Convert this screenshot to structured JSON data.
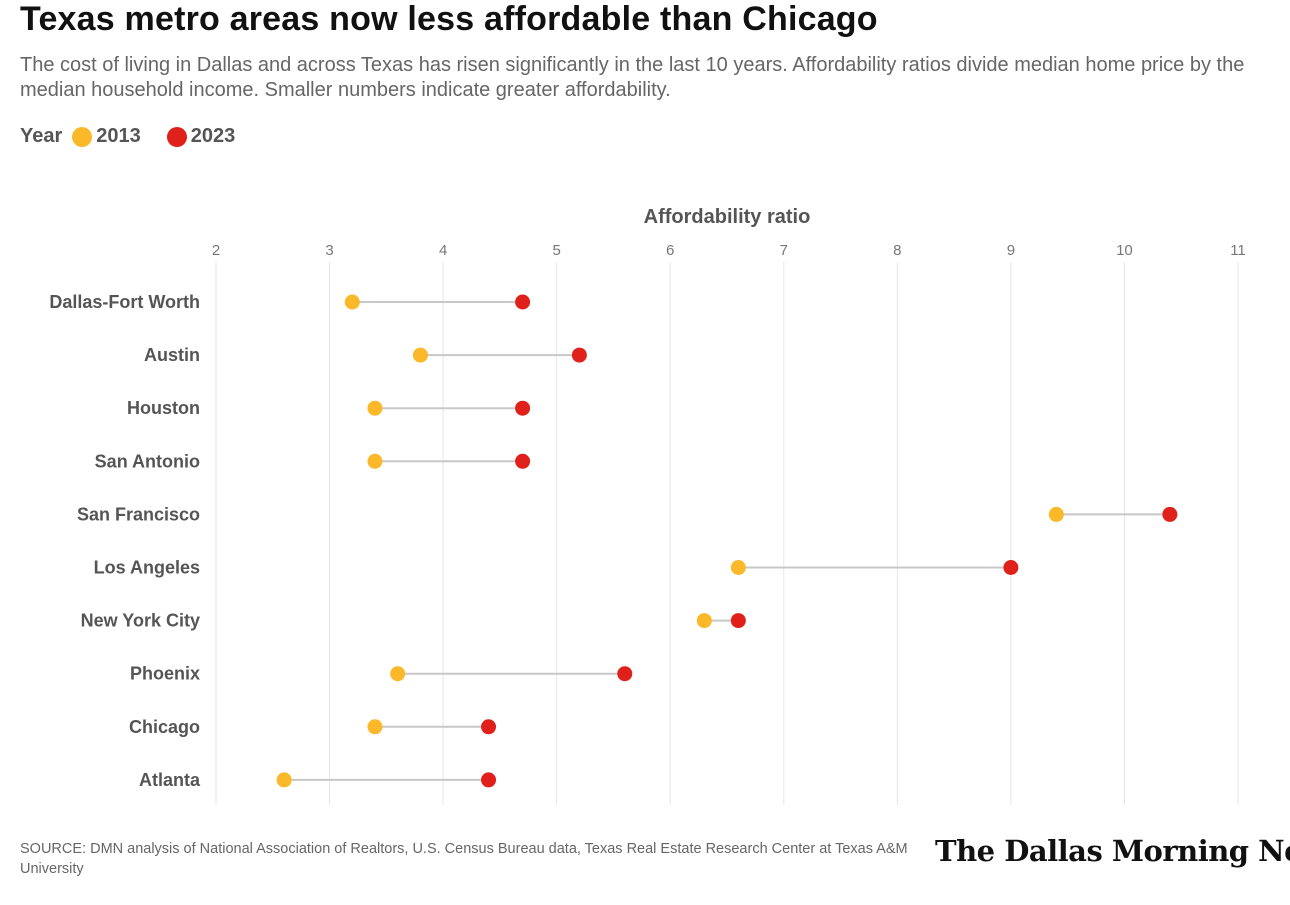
{
  "title": "Texas metro areas now less affordable than Chicago",
  "subtitle": "The cost of living in Dallas and across Texas has risen significantly in the last 10 years. Affordability ratios divide median home price by the median household income. Smaller numbers indicate greater affordability.",
  "legend": {
    "title": "Year",
    "items": [
      {
        "label": "2013",
        "color": "#FBB829"
      },
      {
        "label": "2023",
        "color": "#E0201B"
      }
    ]
  },
  "chart_data": {
    "type": "dumbbell",
    "xlabel": "Affordability ratio",
    "xlim": [
      2,
      11
    ],
    "xticks": [
      2,
      3,
      4,
      5,
      6,
      7,
      8,
      9,
      10,
      11
    ],
    "grid": true,
    "legend_position": "top-left",
    "categories": [
      "Dallas-Fort Worth",
      "Austin",
      "Houston",
      "San Antonio",
      "San Francisco",
      "Los Angeles",
      "New York City",
      "Phoenix",
      "Chicago",
      "Atlanta"
    ],
    "series": [
      {
        "name": "2013",
        "color": "#FBB829",
        "values": [
          3.2,
          3.8,
          3.4,
          3.4,
          9.4,
          6.6,
          6.3,
          3.6,
          3.4,
          2.6
        ]
      },
      {
        "name": "2023",
        "color": "#E0201B",
        "values": [
          4.7,
          5.2,
          4.7,
          4.7,
          10.4,
          9.0,
          6.6,
          5.6,
          4.4,
          4.4
        ]
      }
    ],
    "connector_color": "#C8C8C8"
  },
  "footer": {
    "source": "SOURCE: DMN analysis of National Association of Realtors, U.S. Census Bureau data, Texas Real Estate Research Center at Texas A&M University",
    "logo_text": "The Dallas Morning News"
  }
}
